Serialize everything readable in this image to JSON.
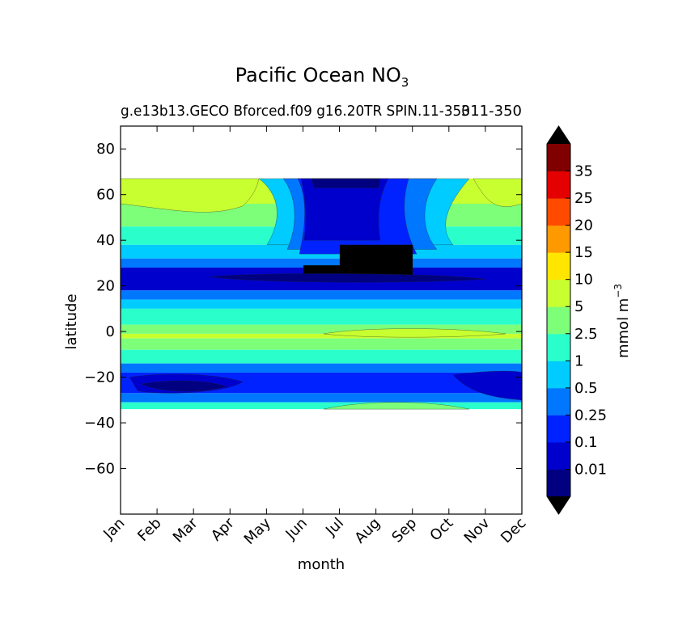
{
  "chart_data": {
    "type": "heatmap",
    "title_main": "Pacific Ocean NO",
    "title_sub": "3",
    "subtitle_left": "g.e13b13.GECO Bforced.f09 g16.20TR SPIN.11-350",
    "subtitle_right": "311-350",
    "xlabel": "month",
    "ylabel": "latitude",
    "x_categories": [
      "Jan",
      "Feb",
      "Mar",
      "Apr",
      "May",
      "Jun",
      "Jul",
      "Aug",
      "Sep",
      "Oct",
      "Nov",
      "Dec"
    ],
    "y_ticks": [
      "−60",
      "−40",
      "−20",
      "0",
      "20",
      "40",
      "60",
      "80"
    ],
    "y_tick_values": [
      -60,
      -40,
      -20,
      0,
      20,
      40,
      60,
      80
    ],
    "ylim": [
      -80,
      90
    ],
    "data_lat_range": [
      -34,
      67
    ],
    "colorbar": {
      "label": "mmol m",
      "label_sup": "−3",
      "levels": [
        0,
        0.01,
        0.1,
        0.25,
        0.5,
        1,
        2.5,
        5,
        10,
        15,
        20,
        25,
        35,
        40
      ],
      "tick_labels": [
        "0.01",
        "0.1",
        "0.25",
        "0.5",
        "1",
        "2.5",
        "5",
        "10",
        "15",
        "20",
        "25",
        "35"
      ],
      "colors": [
        "#000080",
        "#0000cd",
        "#0022ff",
        "#0077ff",
        "#00ccff",
        "#2affcc",
        "#7dff7a",
        "#c8ff30",
        "#ffe600",
        "#ff9900",
        "#ff4a00",
        "#e40000",
        "#800000"
      ],
      "under_color": "#000000",
      "over_color": "#000000"
    },
    "bands": [
      {
        "lat": [
          56,
          67
        ],
        "level": 7
      },
      {
        "lat": [
          46,
          56
        ],
        "level": 6
      },
      {
        "lat": [
          38,
          46
        ],
        "level": 5
      },
      {
        "lat": [
          32,
          38
        ],
        "level": 4
      },
      {
        "lat": [
          28,
          32
        ],
        "level": 3
      },
      {
        "lat": [
          18,
          28
        ],
        "level": 1
      },
      {
        "lat": [
          14,
          18
        ],
        "level": 3
      },
      {
        "lat": [
          10,
          14
        ],
        "level": 4
      },
      {
        "lat": [
          3,
          10
        ],
        "level": 5
      },
      {
        "lat": [
          -1,
          3
        ],
        "level": 6
      },
      {
        "lat": [
          -3,
          -1
        ],
        "level": 7
      },
      {
        "lat": [
          -8,
          -3
        ],
        "level": 6
      },
      {
        "lat": [
          -14,
          -8
        ],
        "level": 5
      },
      {
        "lat": [
          -18,
          -14
        ],
        "level": 3
      },
      {
        "lat": [
          -27,
          -18
        ],
        "level": 2
      },
      {
        "lat": [
          -31,
          -27
        ],
        "level": 3
      },
      {
        "lat": [
          -34,
          -31
        ],
        "level": 5
      }
    ]
  }
}
